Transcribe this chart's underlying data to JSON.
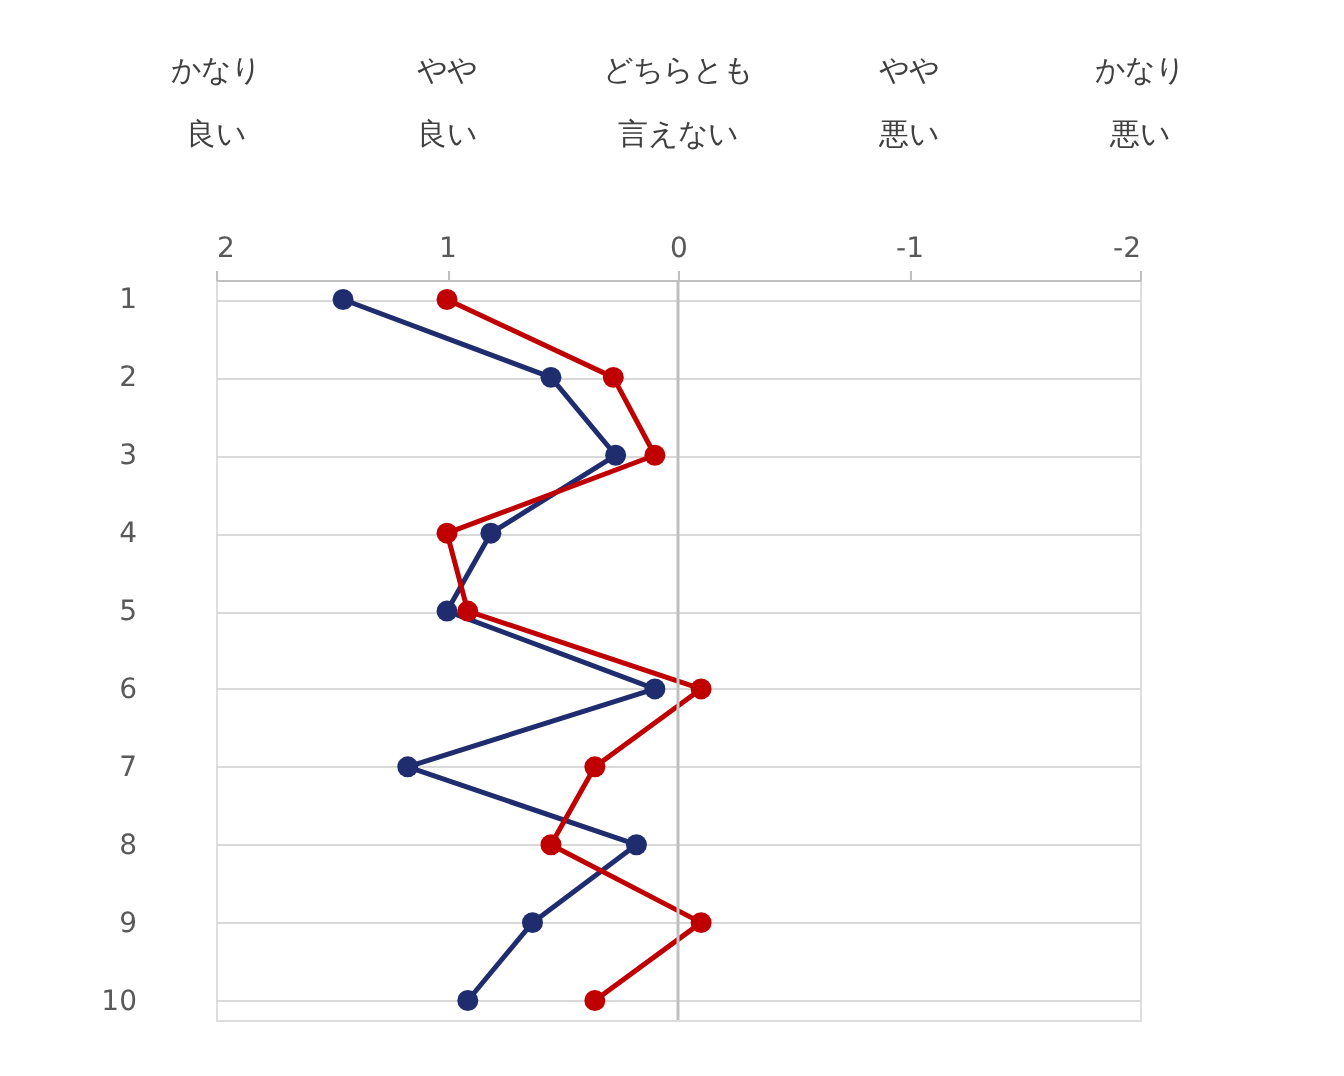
{
  "chart_data": {
    "type": "line",
    "orientation": "horizontal",
    "categories": [
      "1",
      "2",
      "3",
      "4",
      "5",
      "6",
      "7",
      "8",
      "9",
      "10"
    ],
    "series": [
      {
        "color": "#1f2d6e",
        "values": [
          1.45,
          0.55,
          0.27,
          0.81,
          1.0,
          0.1,
          1.17,
          0.18,
          0.63,
          0.91
        ]
      },
      {
        "color": "#c00000",
        "values": [
          1.0,
          0.28,
          0.1,
          1.0,
          0.91,
          -0.1,
          0.36,
          0.55,
          -0.1,
          0.36
        ]
      }
    ],
    "xlim": [
      2,
      -2
    ],
    "xticks": [
      2,
      1,
      0,
      -1,
      -2
    ],
    "annotations": [
      "かなり",
      "良い",
      "やや",
      "良い",
      "どちらとも",
      "言えない",
      "やや",
      "悪い",
      "かなり",
      "悪い"
    ],
    "ref_lines": [
      {
        "axis": "x",
        "value": 0,
        "color": "#bfbfbf"
      }
    ],
    "grid": "y",
    "marker": "circle",
    "line_style": "solid"
  }
}
